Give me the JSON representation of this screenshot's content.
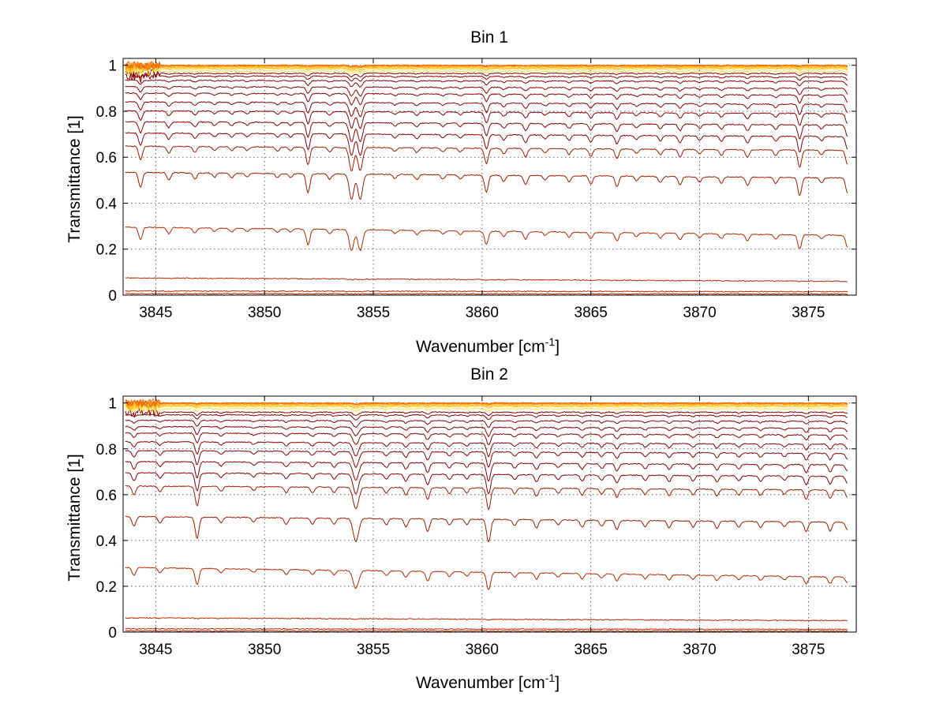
{
  "chart_data": [
    {
      "type": "line",
      "title": "Bin 1",
      "xlabel": "Wavenumber [cm",
      "xlabel_sup": "-1",
      "xlabel_end": "]",
      "ylabel": "Transmittance [1]",
      "xlim": [
        3843.5,
        3877.2
      ],
      "ylim": [
        0,
        1.03
      ],
      "xticks": [
        3845,
        3850,
        3855,
        3860,
        3865,
        3870,
        3875
      ],
      "yticks": [
        0,
        0.2,
        0.4,
        0.6,
        0.8,
        1
      ],
      "ytick_labels": [
        "0",
        "0.2",
        "0.4",
        "0.6",
        "0.8",
        "1"
      ],
      "grid": true,
      "line_colors": [
        "#8b0000",
        "#a01a00",
        "#b52800",
        "#c83000",
        "#d93a00",
        "#e84800",
        "#f05a00",
        "#f86e00",
        "#fb8a00",
        "#ffa000",
        "#ffb400",
        "#ffc820",
        "#ffe040",
        "#00c8c8"
      ],
      "absorption_lines": [
        {
          "x": 3844.3,
          "depth": 0.7,
          "width": 0.12
        },
        {
          "x": 3845.6,
          "depth": 0.35,
          "width": 0.12
        },
        {
          "x": 3846.8,
          "depth": 0.3,
          "width": 0.12
        },
        {
          "x": 3847.7,
          "depth": 0.2,
          "width": 0.12
        },
        {
          "x": 3848.5,
          "depth": 0.22,
          "width": 0.12
        },
        {
          "x": 3849.2,
          "depth": 0.18,
          "width": 0.12
        },
        {
          "x": 3850.6,
          "depth": 0.2,
          "width": 0.12
        },
        {
          "x": 3851.2,
          "depth": 0.18,
          "width": 0.12
        },
        {
          "x": 3852.0,
          "depth": 0.9,
          "width": 0.12
        },
        {
          "x": 3853.0,
          "depth": 0.25,
          "width": 0.12
        },
        {
          "x": 3854.0,
          "depth": 1.2,
          "width": 0.15
        },
        {
          "x": 3854.4,
          "depth": 1.2,
          "width": 0.15
        },
        {
          "x": 3856.0,
          "depth": 0.2,
          "width": 0.12
        },
        {
          "x": 3857.0,
          "depth": 0.25,
          "width": 0.12
        },
        {
          "x": 3858.2,
          "depth": 0.2,
          "width": 0.12
        },
        {
          "x": 3859.0,
          "depth": 0.2,
          "width": 0.12
        },
        {
          "x": 3860.2,
          "depth": 0.8,
          "width": 0.12
        },
        {
          "x": 3861.0,
          "depth": 0.3,
          "width": 0.12
        },
        {
          "x": 3862.0,
          "depth": 0.45,
          "width": 0.12
        },
        {
          "x": 3862.9,
          "depth": 0.22,
          "width": 0.12
        },
        {
          "x": 3864.0,
          "depth": 0.3,
          "width": 0.12
        },
        {
          "x": 3865.0,
          "depth": 0.4,
          "width": 0.12
        },
        {
          "x": 3866.2,
          "depth": 0.5,
          "width": 0.12
        },
        {
          "x": 3867.1,
          "depth": 0.22,
          "width": 0.12
        },
        {
          "x": 3868.2,
          "depth": 0.3,
          "width": 0.12
        },
        {
          "x": 3869.1,
          "depth": 0.4,
          "width": 0.12
        },
        {
          "x": 3870.0,
          "depth": 0.25,
          "width": 0.12
        },
        {
          "x": 3871.0,
          "depth": 0.3,
          "width": 0.12
        },
        {
          "x": 3872.2,
          "depth": 0.4,
          "width": 0.12
        },
        {
          "x": 3873.5,
          "depth": 0.3,
          "width": 0.12
        },
        {
          "x": 3874.6,
          "depth": 0.9,
          "width": 0.12
        },
        {
          "x": 3875.6,
          "depth": 0.25,
          "width": 0.12
        },
        {
          "x": 3876.8,
          "depth": 0.75,
          "width": 0.12
        }
      ],
      "series_baselines": [
        1.0,
        1.0,
        0.998,
        0.995,
        0.99,
        0.985,
        0.975,
        0.965,
        0.95,
        0.93,
        0.9,
        0.87,
        0.83,
        0.79,
        0.74,
        0.69,
        0.63,
        0.51,
        0.26,
        0.06,
        0.015,
        0.005
      ],
      "series_slopes": [
        0,
        0,
        0,
        0,
        0,
        0,
        0,
        0,
        0.006,
        0.008,
        0.012,
        0.015,
        0.018,
        0.02,
        0.024,
        0.026,
        0.03,
        0.04,
        0.06,
        0.025,
        0.005,
        0.002
      ]
    },
    {
      "type": "line",
      "title": "Bin 2",
      "xlabel": "Wavenumber [cm",
      "xlabel_sup": "-1",
      "xlabel_end": "]",
      "ylabel": "Transmittance [1]",
      "xlim": [
        3843.5,
        3877.2
      ],
      "ylim": [
        0,
        1.03
      ],
      "xticks": [
        3845,
        3850,
        3855,
        3860,
        3865,
        3870,
        3875
      ],
      "yticks": [
        0,
        0.2,
        0.4,
        0.6,
        0.8,
        1
      ],
      "ytick_labels": [
        "0",
        "0.2",
        "0.4",
        "0.6",
        "0.8",
        "1"
      ],
      "grid": true,
      "line_colors": [
        "#8b0000",
        "#a01a00",
        "#b52800",
        "#c83000",
        "#d93a00",
        "#e84800",
        "#f05a00",
        "#f86e00",
        "#fb8a00",
        "#ffa000",
        "#ffb400",
        "#ffc820",
        "#ffe040",
        "#00c8c8"
      ],
      "absorption_lines": [
        {
          "x": 3844.0,
          "depth": 0.45,
          "width": 0.12
        },
        {
          "x": 3845.2,
          "depth": 0.3,
          "width": 0.12
        },
        {
          "x": 3846.9,
          "depth": 1.0,
          "width": 0.12
        },
        {
          "x": 3848.0,
          "depth": 0.25,
          "width": 0.12
        },
        {
          "x": 3849.5,
          "depth": 0.2,
          "width": 0.12
        },
        {
          "x": 3851.0,
          "depth": 0.3,
          "width": 0.12
        },
        {
          "x": 3852.2,
          "depth": 0.3,
          "width": 0.12
        },
        {
          "x": 3853.2,
          "depth": 0.3,
          "width": 0.12
        },
        {
          "x": 3854.2,
          "depth": 1.1,
          "width": 0.18
        },
        {
          "x": 3855.6,
          "depth": 0.3,
          "width": 0.12
        },
        {
          "x": 3856.5,
          "depth": 0.4,
          "width": 0.12
        },
        {
          "x": 3857.5,
          "depth": 0.6,
          "width": 0.12
        },
        {
          "x": 3858.5,
          "depth": 0.3,
          "width": 0.12
        },
        {
          "x": 3859.3,
          "depth": 0.25,
          "width": 0.12
        },
        {
          "x": 3860.3,
          "depth": 1.1,
          "width": 0.13
        },
        {
          "x": 3861.5,
          "depth": 0.3,
          "width": 0.12
        },
        {
          "x": 3862.5,
          "depth": 0.4,
          "width": 0.12
        },
        {
          "x": 3863.5,
          "depth": 0.25,
          "width": 0.12
        },
        {
          "x": 3864.6,
          "depth": 0.35,
          "width": 0.12
        },
        {
          "x": 3865.5,
          "depth": 0.3,
          "width": 0.12
        },
        {
          "x": 3866.2,
          "depth": 0.45,
          "width": 0.12
        },
        {
          "x": 3867.5,
          "depth": 0.3,
          "width": 0.12
        },
        {
          "x": 3868.6,
          "depth": 0.35,
          "width": 0.12
        },
        {
          "x": 3869.7,
          "depth": 0.3,
          "width": 0.12
        },
        {
          "x": 3870.8,
          "depth": 0.35,
          "width": 0.12
        },
        {
          "x": 3871.8,
          "depth": 0.3,
          "width": 0.12
        },
        {
          "x": 3872.8,
          "depth": 0.3,
          "width": 0.12
        },
        {
          "x": 3873.9,
          "depth": 0.25,
          "width": 0.12
        },
        {
          "x": 3874.9,
          "depth": 0.5,
          "width": 0.12
        },
        {
          "x": 3876.0,
          "depth": 0.45,
          "width": 0.12
        },
        {
          "x": 3876.8,
          "depth": 0.4,
          "width": 0.12
        }
      ],
      "series_baselines": [
        1.0,
        1.0,
        0.998,
        0.995,
        0.99,
        0.985,
        0.975,
        0.96,
        0.945,
        0.92,
        0.89,
        0.86,
        0.82,
        0.78,
        0.73,
        0.68,
        0.62,
        0.48,
        0.24,
        0.05,
        0.012,
        0.004
      ],
      "series_slopes": [
        0,
        0,
        0,
        0,
        0,
        0,
        0,
        0,
        0.006,
        0.008,
        0.012,
        0.015,
        0.018,
        0.02,
        0.024,
        0.026,
        0.03,
        0.04,
        0.07,
        0.02,
        0.004,
        0.002
      ]
    }
  ]
}
